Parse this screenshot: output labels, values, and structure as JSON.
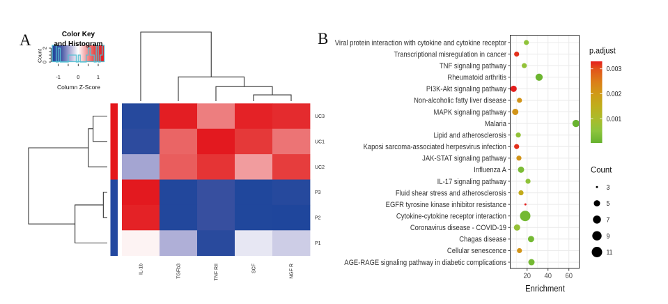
{
  "panels": {
    "a_label": "A",
    "b_label": "B"
  },
  "chart_data": [
    {
      "type": "heatmap",
      "columns": [
        "IL-1b",
        "TGFb3",
        "TNF RII",
        "SCF",
        "NGF R"
      ],
      "rows": [
        "UC3",
        "UC1",
        "UC2",
        "P3",
        "P2",
        "P1"
      ],
      "values": [
        [
          -1.2,
          1.25,
          0.55,
          1.2,
          1.1
        ],
        [
          -1.1,
          0.68,
          1.3,
          0.95,
          0.6
        ],
        [
          -0.45,
          0.72,
          1.0,
          0.4,
          0.9
        ],
        [
          1.3,
          -1.25,
          -0.95,
          -1.28,
          -1.2
        ],
        [
          1.2,
          -1.25,
          -0.95,
          -1.28,
          -1.3
        ],
        [
          0.05,
          -0.4,
          -1.15,
          -0.12,
          -0.25
        ]
      ],
      "row_groups": [
        "UC",
        "UC",
        "UC",
        "P",
        "P",
        "P"
      ],
      "row_group_colors": {
        "UC": "#e4161b",
        "P": "#2348a0"
      },
      "col_dendrogram": {
        "height": 1.0,
        "children": [
          "IL-1b",
          {
            "height": 0.35,
            "children": [
              "TGFb3",
              {
                "height": 0.21,
                "children": [
                  "TNF RII",
                  {
                    "height": 0.09,
                    "children": [
                      "SCF",
                      "NGF R"
                    ]
                  }
                ]
              }
            ]
          }
        ]
      },
      "row_dendrogram": {
        "height": 1.0,
        "children": [
          {
            "height": 0.24,
            "children": [
              {
                "height": 0.18,
                "children": [
                  "UC3",
                  "UC1"
                ]
              },
              "UC2"
            ]
          },
          {
            "height": 0.41,
            "children": [
              {
                "height": 0.05,
                "children": [
                  "P3",
                  "P2"
                ]
              },
              "P1"
            ]
          }
        ]
      },
      "color_key": {
        "title": "Color Key",
        "subtitle": "and Histogram",
        "xlabel": "Column Z-Score",
        "ylabel": "Count",
        "range": [
          -1.3,
          1.3
        ],
        "x_ticks": [
          -1,
          -0.5,
          0,
          0.5,
          1
        ],
        "x_tick_labels": [
          {
            "value": -1,
            "label": "-1"
          },
          {
            "value": 0,
            "label": "0"
          },
          {
            "value": 1,
            "label": "1"
          }
        ],
        "y_ticks": [
          0,
          0.5,
          1,
          1.5,
          2
        ],
        "y_tick_labels": [
          {
            "value": 0,
            "label": "0"
          },
          {
            "value": 2,
            "label": "2"
          }
        ],
        "histogram_color": "#56c1d3",
        "color_stops": [
          [
            -1.3,
            "#1f469c"
          ],
          [
            -0.87,
            "#3d51a0"
          ],
          [
            -0.43,
            "#a9a9d4"
          ],
          [
            0,
            "#ffffff"
          ],
          [
            0.43,
            "#f09597"
          ],
          [
            0.87,
            "#e6403f"
          ],
          [
            1.3,
            "#e3191f"
          ]
        ]
      }
    },
    {
      "type": "scatter",
      "subtype": "dot-plot",
      "title": "",
      "xlabel": "Enrichment",
      "ylabel": "",
      "xlim": [
        3.9,
        69.9
      ],
      "x_ticks": [
        20,
        40,
        60
      ],
      "x_tick_labels": [
        "20",
        "40",
        "60"
      ],
      "grid": true,
      "legend_placement": "right",
      "points": [
        {
          "term": "Viral protein interaction with cytokine and cytokine receptor",
          "enrichment": 19.3,
          "count": 4,
          "p_adjust": 0.00055
        },
        {
          "term": "Transcriptional misregulation in cancer",
          "enrichment": 10.0,
          "count": 4,
          "p_adjust": 0.0032
        },
        {
          "term": "TNF signaling pathway",
          "enrichment": 17.3,
          "count": 4,
          "p_adjust": 0.0006
        },
        {
          "term": "Rheumatoid arthritis",
          "enrichment": 31.5,
          "count": 6,
          "p_adjust": 0.0001
        },
        {
          "term": "PI3K-Akt signaling pathway",
          "enrichment": 7.1,
          "count": 5,
          "p_adjust": 0.0033
        },
        {
          "term": "Non-alcoholic fatty liver disease",
          "enrichment": 12.7,
          "count": 4,
          "p_adjust": 0.0021
        },
        {
          "term": "MAPK signaling pathway",
          "enrichment": 8.7,
          "count": 5,
          "p_adjust": 0.0021
        },
        {
          "term": "Malaria",
          "enrichment": 66.8,
          "count": 6,
          "p_adjust": 5e-05
        },
        {
          "term": "Lipid and atherosclerosis",
          "enrichment": 11.6,
          "count": 4,
          "p_adjust": 0.0006
        },
        {
          "term": "Kaposi sarcoma-associated herpesvirus infection",
          "enrichment": 10.0,
          "count": 4,
          "p_adjust": 0.0032
        },
        {
          "term": "JAK-STAT signaling pathway",
          "enrichment": 12.2,
          "count": 4,
          "p_adjust": 0.0021
        },
        {
          "term": "Influenza A",
          "enrichment": 14.2,
          "count": 5,
          "p_adjust": 0.0003
        },
        {
          "term": "IL-17 signaling pathway",
          "enrichment": 20.9,
          "count": 4,
          "p_adjust": 0.00055
        },
        {
          "term": "Fluid shear stress and atherosclerosis",
          "enrichment": 14.2,
          "count": 4,
          "p_adjust": 0.0016
        },
        {
          "term": "EGFR tyrosine kinase inhibitor resistance",
          "enrichment": 18.4,
          "count": 3,
          "p_adjust": 0.0033
        },
        {
          "term": "Cytokine-cytokine receptor interaction",
          "enrichment": 18.2,
          "count": 11,
          "p_adjust": 0.0002
        },
        {
          "term": "Coronavirus disease - COVID-19",
          "enrichment": 10.4,
          "count": 5,
          "p_adjust": 0.00065
        },
        {
          "term": "Chagas disease",
          "enrichment": 23.8,
          "count": 5,
          "p_adjust": 0.0002
        },
        {
          "term": "Cellular senescence",
          "enrichment": 12.7,
          "count": 4,
          "p_adjust": 0.0021
        },
        {
          "term": "AGE-RAGE signaling pathway in diabetic complications",
          "enrichment": 24.2,
          "count": 5,
          "p_adjust": 0.0002
        }
      ],
      "color_legend": {
        "title": "p.adjust",
        "ticks": [
          0.003,
          0.002,
          0.001
        ],
        "tick_labels": [
          "0.003",
          "0.002",
          "0.001"
        ],
        "range": [
          3e-05,
          0.0033
        ],
        "color_stops": [
          [
            3e-05,
            "#66b22e"
          ],
          [
            0.0005,
            "#8cc43c"
          ],
          [
            0.001,
            "#abbb2a"
          ],
          [
            0.0015,
            "#bfae1b"
          ],
          [
            0.002,
            "#d09a17"
          ],
          [
            0.0025,
            "#dc7d18"
          ],
          [
            0.003,
            "#e2531b"
          ],
          [
            0.0033,
            "#e41e1c"
          ]
        ]
      },
      "size_legend": {
        "title": "Count",
        "range": [
          3,
          11
        ],
        "values": [
          3,
          5,
          7,
          9,
          11
        ],
        "labels": [
          "3",
          "5",
          "7",
          "9",
          "11"
        ],
        "color": "#000000"
      }
    }
  ]
}
